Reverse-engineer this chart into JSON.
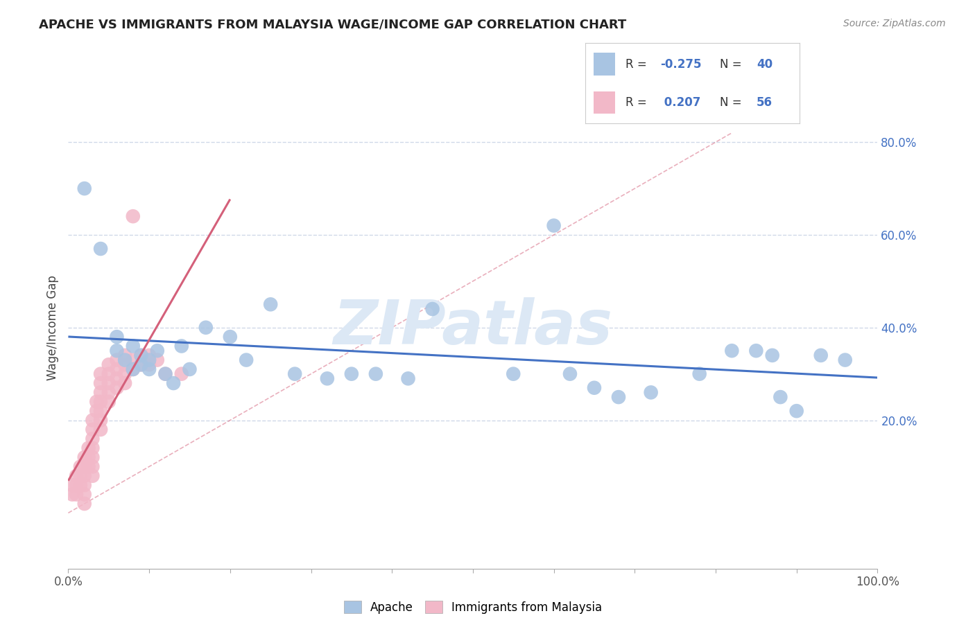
{
  "title": "APACHE VS IMMIGRANTS FROM MALAYSIA WAGE/INCOME GAP CORRELATION CHART",
  "source": "Source: ZipAtlas.com",
  "ylabel": "Wage/Income Gap",
  "xlim": [
    0.0,
    1.0
  ],
  "ylim": [
    -0.12,
    0.92
  ],
  "yticks": [
    0.2,
    0.4,
    0.6,
    0.8
  ],
  "yticklabels": [
    "20.0%",
    "40.0%",
    "60.0%",
    "80.0%"
  ],
  "xtick_positions": [
    0.0,
    0.1,
    0.2,
    0.3,
    0.4,
    0.5,
    0.6,
    0.7,
    0.8,
    0.9,
    1.0
  ],
  "xticklabels_show": {
    "0.0": "0.0%",
    "1.0": "100.0%"
  },
  "apache_color": "#a8c4e2",
  "malaysia_color": "#f2b8c8",
  "apache_line_color": "#4472c4",
  "malaysia_line_color": "#d4607a",
  "grid_color": "#d0d8e8",
  "background_color": "#ffffff",
  "watermark_text": "ZIPatlas",
  "watermark_color": "#dce8f5",
  "apache_x": [
    0.02,
    0.04,
    0.06,
    0.06,
    0.07,
    0.08,
    0.08,
    0.09,
    0.09,
    0.1,
    0.1,
    0.11,
    0.12,
    0.13,
    0.14,
    0.15,
    0.17,
    0.2,
    0.22,
    0.25,
    0.28,
    0.32,
    0.35,
    0.38,
    0.42,
    0.45,
    0.55,
    0.6,
    0.62,
    0.65,
    0.68,
    0.72,
    0.78,
    0.82,
    0.85,
    0.87,
    0.88,
    0.9,
    0.93,
    0.96
  ],
  "apache_y": [
    0.7,
    0.57,
    0.35,
    0.38,
    0.33,
    0.36,
    0.31,
    0.34,
    0.32,
    0.33,
    0.31,
    0.35,
    0.3,
    0.28,
    0.36,
    0.31,
    0.4,
    0.38,
    0.33,
    0.45,
    0.3,
    0.29,
    0.3,
    0.3,
    0.29,
    0.44,
    0.3,
    0.62,
    0.3,
    0.27,
    0.25,
    0.26,
    0.3,
    0.35,
    0.35,
    0.34,
    0.25,
    0.22,
    0.34,
    0.33
  ],
  "malaysia_x": [
    0.005,
    0.005,
    0.01,
    0.01,
    0.01,
    0.015,
    0.015,
    0.015,
    0.02,
    0.02,
    0.02,
    0.02,
    0.02,
    0.02,
    0.025,
    0.025,
    0.025,
    0.03,
    0.03,
    0.03,
    0.03,
    0.03,
    0.03,
    0.03,
    0.035,
    0.035,
    0.04,
    0.04,
    0.04,
    0.04,
    0.04,
    0.04,
    0.04,
    0.05,
    0.05,
    0.05,
    0.05,
    0.05,
    0.06,
    0.06,
    0.06,
    0.06,
    0.07,
    0.07,
    0.07,
    0.07,
    0.08,
    0.08,
    0.08,
    0.09,
    0.09,
    0.1,
    0.1,
    0.11,
    0.12,
    0.14
  ],
  "malaysia_y": [
    0.06,
    0.04,
    0.08,
    0.06,
    0.04,
    0.1,
    0.08,
    0.06,
    0.12,
    0.1,
    0.08,
    0.06,
    0.04,
    0.02,
    0.14,
    0.12,
    0.1,
    0.2,
    0.18,
    0.16,
    0.14,
    0.12,
    0.1,
    0.08,
    0.24,
    0.22,
    0.3,
    0.28,
    0.26,
    0.24,
    0.22,
    0.2,
    0.18,
    0.32,
    0.3,
    0.28,
    0.26,
    0.24,
    0.33,
    0.31,
    0.29,
    0.27,
    0.34,
    0.32,
    0.3,
    0.28,
    0.33,
    0.31,
    0.64,
    0.34,
    0.32,
    0.34,
    0.32,
    0.33,
    0.3,
    0.3
  ],
  "apache_R": -0.275,
  "apache_N": 40,
  "malaysia_R": 0.207,
  "malaysia_N": 56
}
